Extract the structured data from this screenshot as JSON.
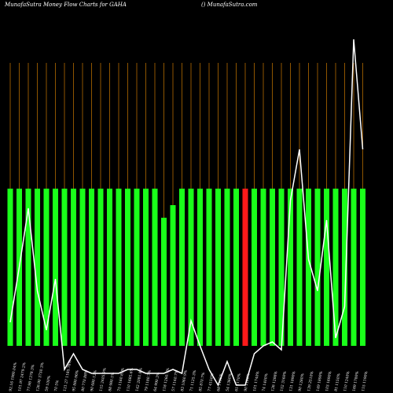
{
  "chart_data": {
    "type": "bar",
    "title": "MunafaSutra  Money Flow  Charts for GAHA",
    "subtitle": "() MunafaSutra.com",
    "categories": [
      "92.16 1980.04%",
      "101.97 2479.2%",
      "77.98 1378.3%",
      "126.90 3730.3%",
      "59 100%",
      "70 5%",
      "121.27 1185.76%",
      "95 880.96%",
      "80 770.88%",
      "90 680.12%",
      "115 2405.9%",
      "88 980.1%",
      "75 1160.85%",
      "110 1685.6%",
      "142 2081.8%",
      "79 1180.7%",
      "64 990.3%",
      "118 1260.7%",
      "57 1140.7%",
      "83 1060.9%",
      "71 1125.3%",
      "85 870.7%",
      "77 4150%",
      "68 1195%",
      "54 1360%",
      "61 1170%",
      "90 1180%",
      "101 1740%",
      "74 1400%",
      "126 1286%",
      "152 3160%",
      "131 1890%",
      "90 1280%",
      "139 2510%",
      "149 1890%",
      "103 1690%",
      "81 1150%",
      "110 1240%",
      "169 1780%",
      "115 1190%"
    ],
    "values": [
      100,
      100,
      100,
      100,
      100,
      100,
      100,
      100,
      100,
      100,
      100,
      100,
      100,
      100,
      100,
      100,
      100,
      81.5,
      89.5,
      100,
      100,
      100,
      100,
      100,
      100,
      100,
      100,
      100,
      100,
      100,
      100,
      100,
      100,
      100,
      100,
      100,
      100,
      100,
      100,
      100
    ],
    "colors": [
      "#1aff1a",
      "#1aff1a",
      "#1aff1a",
      "#1aff1a",
      "#1aff1a",
      "#1aff1a",
      "#1aff1a",
      "#1aff1a",
      "#1aff1a",
      "#1aff1a",
      "#1aff1a",
      "#1aff1a",
      "#1aff1a",
      "#1aff1a",
      "#1aff1a",
      "#1aff1a",
      "#1aff1a",
      "#1aff1a",
      "#1aff1a",
      "#1aff1a",
      "#1aff1a",
      "#1aff1a",
      "#1aff1a",
      "#1aff1a",
      "#1aff1a",
      "#1aff1a",
      "#ff1a1a",
      "#1aff1a",
      "#1aff1a",
      "#1aff1a",
      "#1aff1a",
      "#1aff1a",
      "#1aff1a",
      "#1aff1a",
      "#1aff1a",
      "#1aff1a",
      "#1aff1a",
      "#1aff1a",
      "#1aff1a",
      "#1aff1a"
    ],
    "line": {
      "color": "#ffffff",
      "values": [
        15,
        50,
        87.5,
        35,
        10,
        42.5,
        -15,
        -5,
        -15,
        -17.5,
        -17.5,
        -17.5,
        -17.5,
        -15,
        -15,
        -17.5,
        -17.5,
        -17.5,
        -15,
        -17.5,
        16,
        0,
        -15,
        -25,
        -10,
        -25,
        -25,
        -5,
        0,
        2.5,
        -2.5,
        92.5,
        125,
        55,
        35,
        80,
        5,
        25,
        195,
        125
      ]
    },
    "grid_color": "#b36b00",
    "ylim": [
      -30,
      220
    ]
  }
}
